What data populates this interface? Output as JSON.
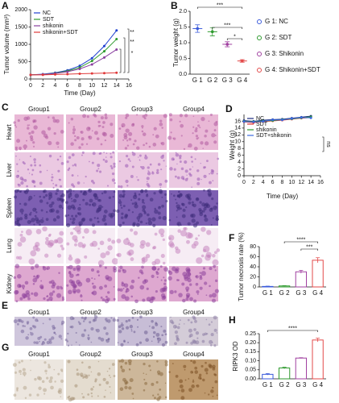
{
  "chart_data": [
    {
      "type": "line",
      "panel": "A",
      "x_label": "Time (Day)",
      "y_label": "Tumor volume (mm³)",
      "x": [
        0,
        2,
        4,
        6,
        8,
        10,
        12,
        14
      ],
      "xlim": [
        0,
        16
      ],
      "xticks": [
        0,
        2,
        4,
        6,
        8,
        10,
        12,
        14,
        16
      ],
      "ylim": [
        0,
        2000
      ],
      "yticks": [
        0,
        500,
        1000,
        1500,
        2000
      ],
      "series": [
        {
          "name": "NC",
          "color": "#2040d0",
          "values": [
            120,
            140,
            180,
            250,
            380,
            600,
            950,
            1400
          ]
        },
        {
          "name": "SDT",
          "color": "#2e9a2e",
          "values": [
            120,
            130,
            170,
            230,
            330,
            520,
            800,
            1150
          ]
        },
        {
          "name": "shikonin",
          "color": "#8a3fa0",
          "values": [
            120,
            130,
            160,
            210,
            290,
            420,
            620,
            850
          ]
        },
        {
          "name": "shikonin+SDT",
          "color": "#e03a3a",
          "values": [
            120,
            120,
            130,
            140,
            150,
            160,
            170,
            180
          ]
        }
      ],
      "annotations": [
        "**",
        "**",
        "*"
      ]
    },
    {
      "type": "dot",
      "panel": "B",
      "y_label": "Tumor weight (g)",
      "categories": [
        "G 1",
        "G 2",
        "G 3",
        "G 4"
      ],
      "values": [
        1.45,
        1.35,
        0.95,
        0.42
      ],
      "errors": [
        0.12,
        0.13,
        0.08,
        0.04
      ],
      "colors": [
        "#3b5bdb",
        "#2e9a2e",
        "#a040a0",
        "#e34a4a"
      ],
      "legend_labels": [
        "G 1: NC",
        "G 2: SDT",
        "G 3: Shikonin",
        "G 4: Shikonin+SDT"
      ],
      "ylim": [
        0,
        2
      ],
      "yticks": [
        {
          "value": 0,
          "label": "0.0"
        },
        0.5,
        {
          "value": 1,
          "label": "1.0"
        },
        1.5,
        {
          "value": 2,
          "label": "2.0"
        }
      ],
      "annotations": [
        "***",
        "***",
        "*"
      ]
    },
    {
      "type": "line",
      "panel": "D",
      "x_label": "Time (Day)",
      "y_label": "Weight (g)",
      "x": [
        0,
        2,
        4,
        6,
        8,
        10,
        12,
        14
      ],
      "xlim": [
        0,
        16
      ],
      "xticks": [
        0,
        2,
        4,
        6,
        8,
        10,
        12,
        14,
        16
      ],
      "ylim": [
        0,
        18
      ],
      "yticks": [
        0,
        2,
        4,
        6,
        8,
        10,
        12,
        14,
        16
      ],
      "series": [
        {
          "name": "NC",
          "color": "#1a2a80",
          "values": [
            16.2,
            16.0,
            16.3,
            16.5,
            16.6,
            16.9,
            17.2,
            17.5
          ]
        },
        {
          "name": "SDT",
          "color": "#e03a3a",
          "values": [
            15.8,
            15.6,
            15.9,
            16.1,
            16.3,
            16.6,
            16.9,
            17.1
          ]
        },
        {
          "name": "shikonin",
          "color": "#2e9a2e",
          "values": [
            16.0,
            15.9,
            16.1,
            16.2,
            16.5,
            16.7,
            17.0,
            17.3
          ]
        },
        {
          "name": "SDT+shikonin",
          "color": "#3b6be0",
          "values": [
            15.9,
            15.8,
            16.0,
            16.4,
            16.4,
            16.8,
            17.1,
            17.0
          ]
        }
      ],
      "annotations": [
        "ns"
      ]
    },
    {
      "type": "bar",
      "panel": "F",
      "y_label": "Tumor necrosis rate (%)",
      "categories": [
        "G 1",
        "G 2",
        "G 3",
        "G 4"
      ],
      "values": [
        1,
        2,
        30,
        53
      ],
      "errors": [
        0.5,
        0.6,
        3,
        5
      ],
      "colors": [
        "#3b5bdb",
        "#2e9a2e",
        "#a040a0",
        "#e34a4a"
      ],
      "ylim": [
        0,
        80
      ],
      "yticks": [
        0,
        20,
        40,
        60,
        80
      ],
      "annotations": [
        "****",
        "***"
      ]
    },
    {
      "type": "bar",
      "panel": "H",
      "y_label": "RIPK3 OD",
      "categories": [
        "G 1",
        "G 2",
        "G 3",
        "G 4"
      ],
      "values": [
        0.025,
        0.06,
        0.115,
        0.215
      ],
      "errors": [
        0.004,
        0.004,
        0.002,
        0.01
      ],
      "colors": [
        "#3b5bdb",
        "#2e9a2e",
        "#a040a0",
        "#e34a4a"
      ],
      "ylim": [
        0,
        0.25
      ],
      "yticks": [
        {
          "value": 0,
          "label": "0.00"
        },
        0.05,
        {
          "value": 0.1,
          "label": "0.10"
        },
        0.15,
        {
          "value": 0.2,
          "label": "0.20"
        },
        0.25
      ],
      "annotations": [
        "****"
      ]
    }
  ],
  "histology": {
    "panel": "C",
    "groups": [
      "Group1",
      "Group2",
      "Group3",
      "Group4"
    ],
    "organs": [
      "Heart",
      "Liver",
      "Spleen",
      "Lung",
      "Kidney"
    ]
  },
  "ihc": [
    {
      "panel": "E",
      "groups": [
        "Group1",
        "Group2",
        "Group3",
        "Group4"
      ]
    },
    {
      "panel": "G",
      "groups": [
        "Group1",
        "Group2",
        "Group3",
        "Group4"
      ]
    }
  ]
}
